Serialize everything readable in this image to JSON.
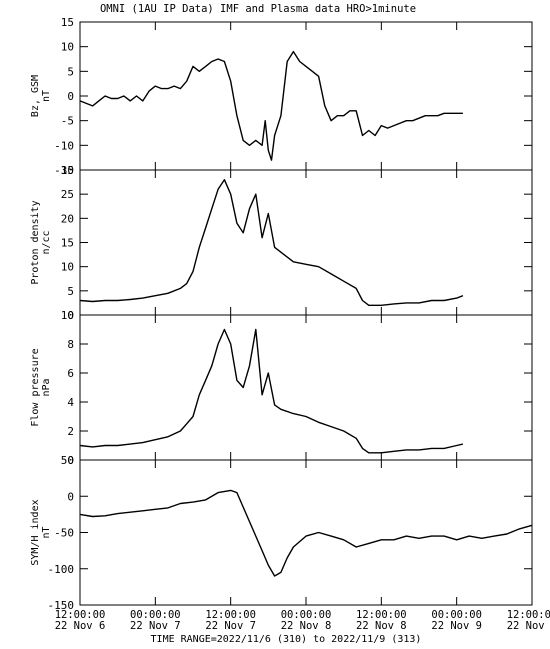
{
  "title": "OMNI (1AU IP Data)  IMF and Plasma data  HRO>1minute",
  "footer": "TIME RANGE=2022/11/6 (310) to 2022/11/9 (313)",
  "chart_data": {
    "type": "line",
    "x_ticks": [
      {
        "time": "12:00:00",
        "date": "22 Nov  6"
      },
      {
        "time": "00:00:00",
        "date": "22 Nov  7"
      },
      {
        "time": "12:00:00",
        "date": "22 Nov  7"
      },
      {
        "time": "00:00:00",
        "date": "22 Nov  8"
      },
      {
        "time": "12:00:00",
        "date": "22 Nov  8"
      },
      {
        "time": "00:00:00",
        "date": "22 Nov  9"
      },
      {
        "time": "12:00:00",
        "date": "22 Nov  9"
      }
    ],
    "xlim": [
      "2022-11-06T12:00",
      "2022-11-09T12:00"
    ],
    "panels": [
      {
        "ylabel": "Bz, GSM",
        "unit": "nT",
        "ylim": [
          -15,
          15
        ],
        "yticks": [
          -15,
          -10,
          -5,
          0,
          5,
          10,
          15
        ],
        "x": [
          "2022-11-06T12:00",
          "2022-11-06T13:00",
          "2022-11-06T14:00",
          "2022-11-06T15:00",
          "2022-11-06T16:00",
          "2022-11-06T17:00",
          "2022-11-06T18:00",
          "2022-11-06T19:00",
          "2022-11-06T20:00",
          "2022-11-06T21:00",
          "2022-11-06T22:00",
          "2022-11-06T23:00",
          "2022-11-07T00:00",
          "2022-11-07T01:00",
          "2022-11-07T02:00",
          "2022-11-07T03:00",
          "2022-11-07T04:00",
          "2022-11-07T05:00",
          "2022-11-07T06:00",
          "2022-11-07T07:00",
          "2022-11-07T08:00",
          "2022-11-07T09:00",
          "2022-11-07T10:00",
          "2022-11-07T11:00",
          "2022-11-07T12:00",
          "2022-11-07T13:00",
          "2022-11-07T14:00",
          "2022-11-07T15:00",
          "2022-11-07T16:00",
          "2022-11-07T17:00",
          "2022-11-07T17:30",
          "2022-11-07T18:00",
          "2022-11-07T18:30",
          "2022-11-07T19:00",
          "2022-11-07T20:00",
          "2022-11-07T21:00",
          "2022-11-07T22:00",
          "2022-11-07T23:00",
          "2022-11-08T00:00",
          "2022-11-08T01:00",
          "2022-11-08T02:00",
          "2022-11-08T03:00",
          "2022-11-08T04:00",
          "2022-11-08T05:00",
          "2022-11-08T06:00",
          "2022-11-08T07:00",
          "2022-11-08T08:00",
          "2022-11-08T09:00",
          "2022-11-08T10:00",
          "2022-11-08T11:00",
          "2022-11-08T12:00",
          "2022-11-08T13:00",
          "2022-11-08T14:00",
          "2022-11-08T15:00",
          "2022-11-08T16:00",
          "2022-11-08T17:00",
          "2022-11-08T18:00",
          "2022-11-08T19:00",
          "2022-11-08T20:00",
          "2022-11-08T21:00",
          "2022-11-08T22:00",
          "2022-11-08T23:00",
          "2022-11-09T00:00",
          "2022-11-09T01:00"
        ],
        "values": [
          -1,
          -1.5,
          -2,
          -1,
          0,
          -0.5,
          -0.5,
          0,
          -1,
          0,
          -1,
          1,
          2,
          1.5,
          1.5,
          2,
          1.5,
          3,
          6,
          5,
          6,
          7,
          7.5,
          7,
          3,
          -4,
          -9,
          -10,
          -9,
          -10,
          -5,
          -11,
          -13,
          -8,
          -4,
          7,
          9,
          7,
          6,
          5,
          4,
          -2,
          -5,
          -4,
          -4,
          -3,
          -3,
          -8,
          -7,
          -8,
          -6,
          -6.5,
          -6,
          -5.5,
          -5,
          -5,
          -4.5,
          -4,
          -4,
          -4,
          -3.5,
          -3.5,
          -3.5,
          -3.5
        ]
      },
      {
        "ylabel": "Proton density",
        "unit": "n/cc",
        "ylim": [
          0,
          30
        ],
        "yticks": [
          0,
          5,
          10,
          15,
          20,
          25,
          30
        ],
        "x": [
          "2022-11-06T12:00",
          "2022-11-06T14:00",
          "2022-11-06T16:00",
          "2022-11-06T18:00",
          "2022-11-06T20:00",
          "2022-11-06T22:00",
          "2022-11-07T00:00",
          "2022-11-07T02:00",
          "2022-11-07T04:00",
          "2022-11-07T05:00",
          "2022-11-07T06:00",
          "2022-11-07T07:00",
          "2022-11-07T08:00",
          "2022-11-07T09:00",
          "2022-11-07T10:00",
          "2022-11-07T11:00",
          "2022-11-07T12:00",
          "2022-11-07T13:00",
          "2022-11-07T14:00",
          "2022-11-07T15:00",
          "2022-11-07T16:00",
          "2022-11-07T17:00",
          "2022-11-07T18:00",
          "2022-11-07T19:00",
          "2022-11-07T20:00",
          "2022-11-07T22:00",
          "2022-11-08T00:00",
          "2022-11-08T02:00",
          "2022-11-08T04:00",
          "2022-11-08T06:00",
          "2022-11-08T08:00",
          "2022-11-08T09:00",
          "2022-11-08T10:00",
          "2022-11-08T12:00",
          "2022-11-08T14:00",
          "2022-11-08T16:00",
          "2022-11-08T18:00",
          "2022-11-08T20:00",
          "2022-11-08T22:00",
          "2022-11-09T00:00",
          "2022-11-09T01:00"
        ],
        "values": [
          3,
          2.8,
          3,
          3,
          3.2,
          3.5,
          4,
          4.5,
          5.5,
          6.5,
          9,
          14,
          18,
          22,
          26,
          28,
          25,
          19,
          17,
          22,
          25,
          16,
          21,
          14,
          13,
          11,
          10.5,
          10,
          8.5,
          7,
          5.5,
          3,
          2,
          2,
          2.3,
          2.5,
          2.5,
          3,
          3,
          3.5,
          4
        ]
      },
      {
        "ylabel": "Flow pressure",
        "unit": "nPa",
        "ylim": [
          0,
          10
        ],
        "yticks": [
          0,
          2,
          4,
          6,
          8,
          10
        ],
        "x": [
          "2022-11-06T12:00",
          "2022-11-06T14:00",
          "2022-11-06T16:00",
          "2022-11-06T18:00",
          "2022-11-06T20:00",
          "2022-11-06T22:00",
          "2022-11-07T00:00",
          "2022-11-07T02:00",
          "2022-11-07T04:00",
          "2022-11-07T05:00",
          "2022-11-07T06:00",
          "2022-11-07T07:00",
          "2022-11-07T08:00",
          "2022-11-07T09:00",
          "2022-11-07T10:00",
          "2022-11-07T11:00",
          "2022-11-07T12:00",
          "2022-11-07T13:00",
          "2022-11-07T14:00",
          "2022-11-07T15:00",
          "2022-11-07T16:00",
          "2022-11-07T17:00",
          "2022-11-07T18:00",
          "2022-11-07T19:00",
          "2022-11-07T20:00",
          "2022-11-07T22:00",
          "2022-11-08T00:00",
          "2022-11-08T02:00",
          "2022-11-08T04:00",
          "2022-11-08T06:00",
          "2022-11-08T08:00",
          "2022-11-08T09:00",
          "2022-11-08T10:00",
          "2022-11-08T12:00",
          "2022-11-08T14:00",
          "2022-11-08T16:00",
          "2022-11-08T18:00",
          "2022-11-08T20:00",
          "2022-11-08T22:00",
          "2022-11-09T00:00",
          "2022-11-09T01:00"
        ],
        "values": [
          1,
          0.9,
          1,
          1,
          1.1,
          1.2,
          1.4,
          1.6,
          2,
          2.5,
          3,
          4.5,
          5.5,
          6.5,
          8,
          9,
          8,
          5.5,
          5,
          6.5,
          9,
          4.5,
          6,
          3.8,
          3.5,
          3.2,
          3,
          2.6,
          2.3,
          2,
          1.5,
          0.8,
          0.5,
          0.5,
          0.6,
          0.7,
          0.7,
          0.8,
          0.8,
          1,
          1.1
        ]
      },
      {
        "ylabel": "SYM/H index",
        "unit": "nT",
        "ylim": [
          -150,
          50
        ],
        "yticks": [
          -150,
          -100,
          -50,
          0,
          50
        ],
        "x": [
          "2022-11-06T12:00",
          "2022-11-06T14:00",
          "2022-11-06T16:00",
          "2022-11-06T18:00",
          "2022-11-06T20:00",
          "2022-11-06T22:00",
          "2022-11-07T00:00",
          "2022-11-07T02:00",
          "2022-11-07T04:00",
          "2022-11-07T06:00",
          "2022-11-07T08:00",
          "2022-11-07T10:00",
          "2022-11-07T12:00",
          "2022-11-07T13:00",
          "2022-11-07T14:00",
          "2022-11-07T15:00",
          "2022-11-07T16:00",
          "2022-11-07T17:00",
          "2022-11-07T18:00",
          "2022-11-07T19:00",
          "2022-11-07T20:00",
          "2022-11-07T21:00",
          "2022-11-07T22:00",
          "2022-11-08T00:00",
          "2022-11-08T02:00",
          "2022-11-08T04:00",
          "2022-11-08T06:00",
          "2022-11-08T08:00",
          "2022-11-08T10:00",
          "2022-11-08T12:00",
          "2022-11-08T14:00",
          "2022-11-08T16:00",
          "2022-11-08T18:00",
          "2022-11-08T20:00",
          "2022-11-08T22:00",
          "2022-11-09T00:00",
          "2022-11-09T02:00",
          "2022-11-09T04:00",
          "2022-11-09T06:00",
          "2022-11-09T08:00",
          "2022-11-09T10:00",
          "2022-11-09T12:00"
        ],
        "values": [
          -25,
          -28,
          -27,
          -24,
          -22,
          -20,
          -18,
          -16,
          -10,
          -8,
          -5,
          5,
          8,
          5,
          -15,
          -35,
          -55,
          -75,
          -95,
          -110,
          -105,
          -85,
          -70,
          -55,
          -50,
          -55,
          -60,
          -70,
          -65,
          -60,
          -60,
          -55,
          -58,
          -55,
          -55,
          -60,
          -55,
          -58,
          -55,
          -52,
          -45,
          -40
        ]
      }
    ]
  }
}
